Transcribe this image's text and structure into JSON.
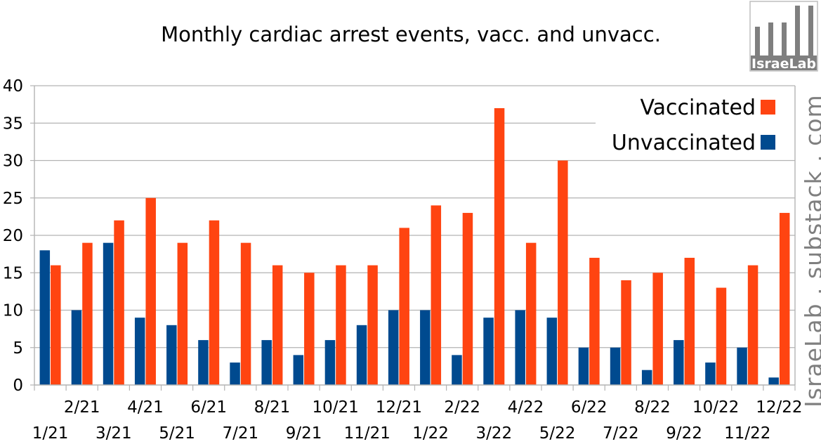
{
  "chart_data": {
    "type": "bar",
    "title": "Monthly cardiac arrest events, vacc. and unvacc.",
    "categories": [
      "1/21",
      "2/21",
      "3/21",
      "4/21",
      "5/21",
      "6/21",
      "7/21",
      "8/21",
      "9/21",
      "10/21",
      "11/21",
      "12/21",
      "1/22",
      "2/22",
      "3/22",
      "4/22",
      "5/22",
      "6/22",
      "7/22",
      "8/22",
      "9/22",
      "10/22",
      "11/22",
      "12/22"
    ],
    "series": [
      {
        "name": "Unvaccinated",
        "color": "#004a8f",
        "values": [
          18,
          10,
          19,
          9,
          8,
          6,
          3,
          6,
          4,
          6,
          8,
          10,
          10,
          4,
          9,
          10,
          9,
          5,
          5,
          2,
          6,
          3,
          5,
          1
        ]
      },
      {
        "name": "Vaccinated",
        "color": "#ff4411",
        "values": [
          16,
          19,
          22,
          25,
          19,
          22,
          19,
          16,
          15,
          16,
          16,
          21,
          24,
          23,
          37,
          19,
          30,
          17,
          14,
          15,
          17,
          13,
          16,
          23
        ]
      }
    ],
    "ylim": [
      0,
      40
    ],
    "yticks": [
      0,
      5,
      10,
      15,
      20,
      25,
      30,
      35,
      40
    ],
    "xlabel": "",
    "ylabel": "",
    "grid": true,
    "legend": {
      "position": "top-right",
      "order": [
        "Vaccinated",
        "Unvaccinated"
      ]
    }
  },
  "watermark": "IsraeLab . substack . com",
  "logo": {
    "text": "IsraeLab",
    "bar_color": "#7f7f7f"
  }
}
